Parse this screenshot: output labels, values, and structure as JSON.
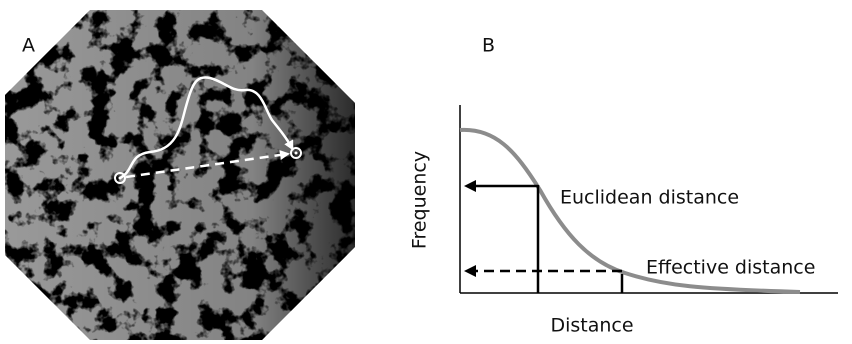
{
  "panels": [
    {
      "label": "A"
    },
    {
      "label": "B",
      "y_axis_label": "Frequency",
      "x_axis_label": "Distance",
      "annotations": [
        "Euclidean distance",
        "Effective distance"
      ]
    }
  ]
}
